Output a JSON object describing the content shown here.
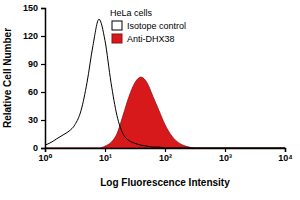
{
  "chart_data": {
    "type": "line",
    "title": "HeLa cells",
    "x_label": "Log Fluorescence Intensity",
    "y_label": "Relative Cell Number",
    "log": "x",
    "x": [
      1,
      1.26,
      1.58,
      2,
      2.51,
      3.16,
      3.98,
      5.01,
      6.31,
      7.94,
      10,
      12.6,
      15.8,
      20,
      25.1,
      31.6,
      39.8,
      50.1,
      63.1,
      79.4,
      100,
      126,
      158,
      200,
      251,
      316,
      398,
      501,
      631,
      794,
      1000,
      1260,
      1580,
      2000,
      2510,
      3160,
      3980,
      5010,
      6310,
      7940,
      10000
    ],
    "series": [
      {
        "name": "Isotope control",
        "type": "line",
        "color": "#000000",
        "values": [
          3,
          6,
          10,
          14,
          18,
          25,
          40,
          70,
          110,
          138,
          115,
          70,
          35,
          15,
          8,
          5,
          3,
          2,
          1,
          1,
          0,
          0,
          0,
          0,
          0,
          0,
          0,
          0,
          0,
          0,
          0,
          0,
          0,
          0,
          0,
          0,
          0,
          0,
          0,
          0,
          0
        ]
      },
      {
        "name": "Anti-DHX38",
        "type": "area",
        "color": "#d7191c",
        "values": [
          0,
          0,
          0,
          0,
          0,
          0,
          0,
          0,
          0,
          0,
          2,
          6,
          15,
          35,
          55,
          70,
          76,
          70,
          55,
          40,
          25,
          14,
          7,
          3,
          1,
          0,
          0,
          0,
          0,
          0,
          0,
          0,
          0,
          0,
          0,
          0,
          0,
          0,
          0,
          0,
          0
        ]
      }
    ],
    "xlim": [
      1,
      10000
    ],
    "xticks": [
      {
        "value": 1,
        "label": "10⁰"
      },
      {
        "value": 10,
        "label": "10¹"
      },
      {
        "value": 100,
        "label": "10²"
      },
      {
        "value": 1000,
        "label": "10³"
      },
      {
        "value": 10000,
        "label": "10⁴"
      }
    ],
    "ylim": [
      0,
      150
    ],
    "yticks": [
      0,
      30,
      60,
      90,
      120,
      150
    ],
    "legend": "upper center",
    "grid": false
  }
}
